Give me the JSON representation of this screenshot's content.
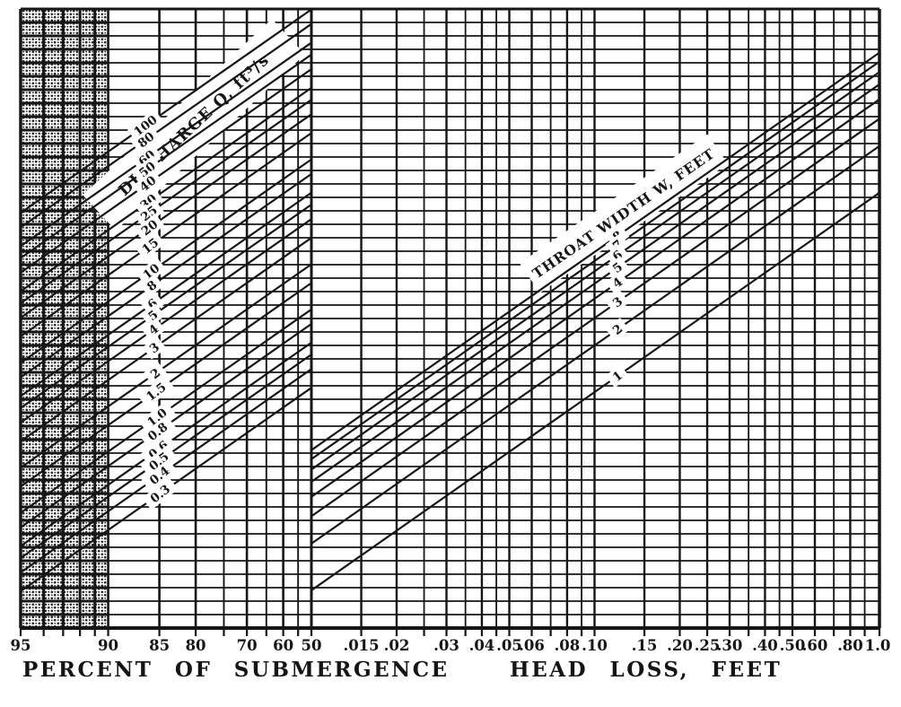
{
  "figure": {
    "background": "#ffffff",
    "ink": "#161616"
  },
  "chart_data": {
    "type": "nomograph",
    "panels": "two shared-grid log panels: percent submergence (left), head loss (right)",
    "left_panel": {
      "axis_label": "PERCENT OF SUBMERGENCE",
      "tick_labels": [
        "95",
        "90",
        "85",
        "80",
        "70",
        "60",
        "50"
      ],
      "tick_values": [
        95,
        90,
        85,
        80,
        70,
        60,
        50
      ],
      "scale": "logarithmic in (100 - percent), 95 at left edge to 50 at panel divider",
      "gridline_values": [
        94,
        93,
        92,
        91,
        90,
        85,
        80,
        75,
        70,
        65,
        60,
        55
      ],
      "hatched_band_range": [
        95,
        90
      ],
      "diagonal_family": {
        "label": "DISCHARGE Q, ft³/s",
        "values": [
          "100",
          "80",
          "60",
          "50",
          "40",
          "30",
          "25",
          "20",
          "15",
          "10",
          "8",
          "6",
          "5",
          "4",
          "3",
          "2",
          "1.5",
          "1.0",
          "0.8",
          "0.6",
          "0.5",
          "0.4",
          "0.3"
        ]
      }
    },
    "right_panel": {
      "axis_label": "HEAD LOSS, FEET",
      "tick_labels": [
        ".015",
        ".02",
        ".03",
        ".04",
        ".05",
        ".06",
        ".08",
        ".10",
        ".15",
        ".20",
        ".25",
        ".30",
        ".40",
        ".50",
        ".60",
        ".80",
        "1.0"
      ],
      "tick_values": [
        0.015,
        0.02,
        0.03,
        0.04,
        0.05,
        0.06,
        0.08,
        0.1,
        0.15,
        0.2,
        0.25,
        0.3,
        0.4,
        0.5,
        0.6,
        0.8,
        1.0
      ],
      "scale": "logarithmic, 0.01 at panel divider to 1.0 at right edge",
      "diagonal_family": {
        "label": "THROAT WIDTH W, FEET",
        "values": [
          "8",
          "7",
          "6",
          "5",
          "4",
          "3",
          "2",
          "1"
        ]
      }
    }
  }
}
